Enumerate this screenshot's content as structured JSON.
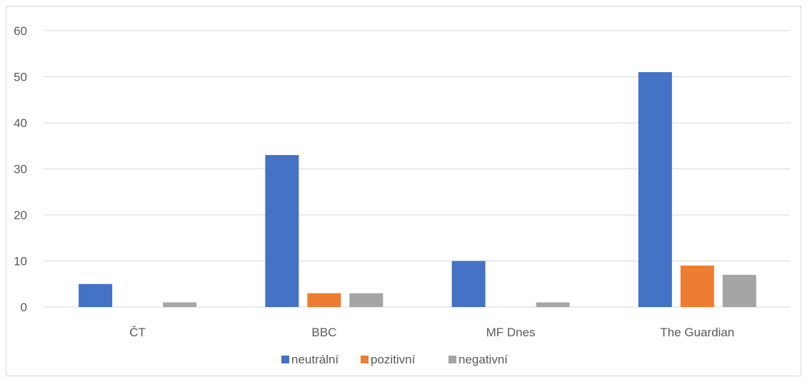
{
  "chart_data": {
    "type": "bar",
    "categories": [
      "ČT",
      "BBC",
      "MF Dnes",
      "The Guardian"
    ],
    "series": [
      {
        "name": "neutrální",
        "values": [
          5,
          33,
          10,
          51
        ],
        "color": "#4472C4"
      },
      {
        "name": "pozitivní",
        "values": [
          0,
          3,
          0,
          9
        ],
        "color": "#ED7D31"
      },
      {
        "name": "negativní",
        "values": [
          1,
          3,
          1,
          7
        ],
        "color": "#A5A5A5"
      }
    ],
    "y_ticks": [
      "0",
      "10",
      "20",
      "30",
      "40",
      "50",
      "60"
    ],
    "ylim": [
      0,
      60
    ],
    "grid": true,
    "legend_position": "bottom",
    "title": "",
    "xlabel": "",
    "ylabel": ""
  }
}
